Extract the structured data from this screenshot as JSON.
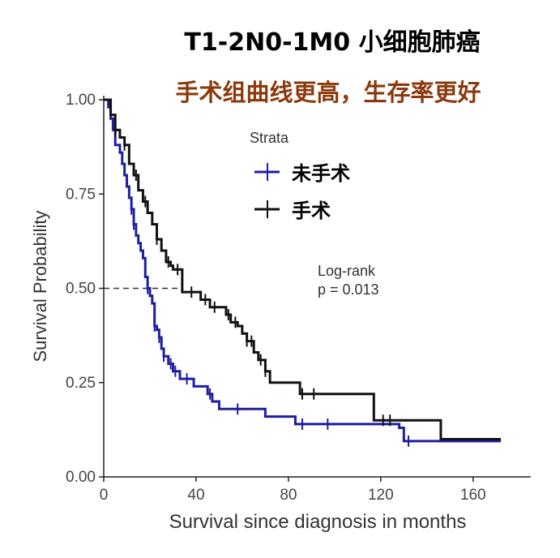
{
  "chart_data": {
    "type": "line",
    "title": "T1-2N0-1M0 小细胞肺癌",
    "subtitle": "手术组曲线更高，生存率更好",
    "xlabel": "Survival since diagnosis in months",
    "ylabel": "Survival Probability",
    "xlim": [
      0,
      185
    ],
    "ylim": [
      0,
      1
    ],
    "x_ticks": [
      0,
      40,
      80,
      120,
      160
    ],
    "y_ticks": [
      0.0,
      0.25,
      0.5,
      0.75,
      1.0
    ],
    "x_tick_labels": [
      "0",
      "40",
      "80",
      "120",
      "160"
    ],
    "y_tick_labels": [
      "0.00",
      "0.25",
      "0.50",
      "0.75",
      "1.00"
    ],
    "legend_title": "Strata",
    "legend_position": "top-center",
    "annotation_line1": "Log-rank",
    "annotation_line2": "p = 0.013",
    "median_reference": {
      "y": 0.5,
      "x_end": 34
    },
    "series": [
      {
        "name": "未手术",
        "color": "#1f1f9e",
        "steps": [
          [
            0,
            1.0
          ],
          [
            2,
            0.98
          ],
          [
            3,
            0.95
          ],
          [
            4,
            0.92
          ],
          [
            5,
            0.88
          ],
          [
            7,
            0.86
          ],
          [
            8,
            0.83
          ],
          [
            9,
            0.8
          ],
          [
            10,
            0.77
          ],
          [
            11,
            0.74
          ],
          [
            12,
            0.71
          ],
          [
            13,
            0.67
          ],
          [
            14,
            0.64
          ],
          [
            15,
            0.62
          ],
          [
            16,
            0.6
          ],
          [
            17,
            0.58
          ],
          [
            18,
            0.53
          ],
          [
            19,
            0.5
          ],
          [
            20,
            0.48
          ],
          [
            21,
            0.46
          ],
          [
            22,
            0.4
          ],
          [
            23,
            0.39
          ],
          [
            24,
            0.37
          ],
          [
            25,
            0.34
          ],
          [
            26,
            0.32
          ],
          [
            28,
            0.3
          ],
          [
            30,
            0.28
          ],
          [
            33,
            0.26
          ],
          [
            39,
            0.24
          ],
          [
            45,
            0.22
          ],
          [
            47,
            0.2
          ],
          [
            50,
            0.18
          ],
          [
            70,
            0.16
          ],
          [
            83,
            0.14
          ],
          [
            128,
            0.13
          ],
          [
            130,
            0.095
          ],
          [
            172,
            0.095
          ]
        ],
        "censor_x": [
          12,
          13,
          19,
          22,
          24,
          26,
          29,
          31,
          36,
          46,
          58,
          86,
          97,
          132
        ]
      },
      {
        "name": "手术",
        "color": "#111111",
        "steps": [
          [
            0,
            1.0
          ],
          [
            3,
            0.96
          ],
          [
            5,
            0.92
          ],
          [
            7,
            0.9
          ],
          [
            9,
            0.88
          ],
          [
            11,
            0.83
          ],
          [
            13,
            0.8
          ],
          [
            15,
            0.76
          ],
          [
            17,
            0.73
          ],
          [
            19,
            0.7
          ],
          [
            21,
            0.67
          ],
          [
            23,
            0.63
          ],
          [
            25,
            0.6
          ],
          [
            27,
            0.57
          ],
          [
            29,
            0.56
          ],
          [
            30,
            0.55
          ],
          [
            34,
            0.49
          ],
          [
            42,
            0.47
          ],
          [
            46,
            0.45
          ],
          [
            53,
            0.43
          ],
          [
            55,
            0.41
          ],
          [
            58,
            0.4
          ],
          [
            60,
            0.38
          ],
          [
            62,
            0.36
          ],
          [
            65,
            0.33
          ],
          [
            67,
            0.31
          ],
          [
            70,
            0.28
          ],
          [
            72,
            0.25
          ],
          [
            85,
            0.22
          ],
          [
            117,
            0.15
          ],
          [
            146,
            0.1
          ],
          [
            172,
            0.1
          ]
        ],
        "censor_x": [
          5,
          9,
          14,
          18,
          23,
          28,
          32,
          38,
          44,
          48,
          54,
          57,
          62,
          64,
          68,
          70,
          86,
          91,
          121,
          124
        ]
      }
    ]
  }
}
